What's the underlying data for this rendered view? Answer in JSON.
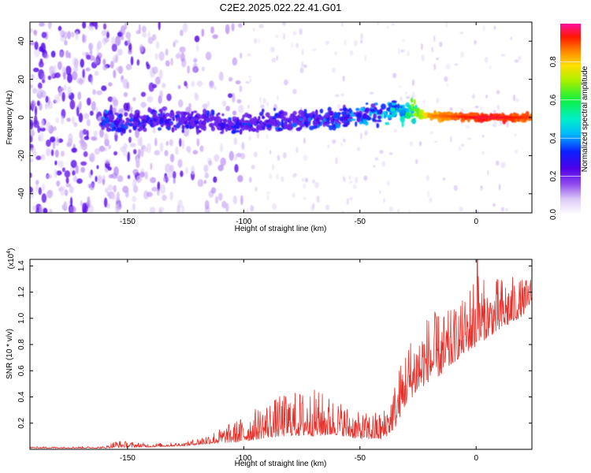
{
  "title": "C2E2.2025.022.22.41.G01",
  "chart_data": [
    {
      "type": "heatmap",
      "xlabel": "Height of straight line (km)",
      "ylabel": "Frequency (Hz)",
      "xlim": [
        -192,
        24
      ],
      "ylim": [
        -50,
        50
      ],
      "xticks": [
        -150,
        -100,
        -50,
        0
      ],
      "yticks": [
        -40,
        -20,
        0,
        20,
        40
      ],
      "colorbar": {
        "label": "Normalized spectral amplitude",
        "range": [
          0,
          1
        ],
        "ticks": [
          0.0,
          0.2,
          0.4,
          0.6,
          0.8
        ]
      },
      "ridge": {
        "x": [
          -160,
          -150,
          -140,
          -120,
          -100,
          -80,
          -60,
          -50,
          -40,
          -35,
          -30,
          -20,
          0,
          10,
          24
        ],
        "y": [
          -2,
          -3,
          -1,
          -2,
          -3,
          -2,
          -1,
          1,
          2,
          4,
          3,
          1,
          0,
          0,
          0
        ],
        "amplitude": [
          0.35,
          0.3,
          0.3,
          0.28,
          0.3,
          0.32,
          0.35,
          0.38,
          0.45,
          0.5,
          0.55,
          0.85,
          0.95,
          0.95,
          0.9
        ]
      },
      "background_noise_extent": [
        -192,
        -100
      ]
    },
    {
      "type": "line",
      "xlabel": "Height of straight line (km)",
      "ylabel": "SNR (10 * v/v)",
      "y_multiplier_label": "(x10",
      "y_multiplier_exp": "4",
      "y_multiplier_close": ")",
      "xlim": [
        -192,
        24
      ],
      "ylim": [
        0,
        1.45
      ],
      "xticks": [
        -150,
        -100,
        -50,
        0
      ],
      "yticks": [
        0.2,
        0.4,
        0.6,
        0.8,
        1.0,
        1.2,
        1.4
      ],
      "color": "#e8302a",
      "envelope": {
        "x": [
          -192,
          -160,
          -155,
          -140,
          -125,
          -120,
          -110,
          -100,
          -90,
          -80,
          -70,
          -60,
          -50,
          -40,
          -35,
          -30,
          -25,
          -20,
          -15,
          -10,
          -5,
          0,
          5,
          10,
          15,
          20,
          24
        ],
        "base": [
          0.01,
          0.01,
          0.02,
          0.02,
          0.03,
          0.04,
          0.06,
          0.08,
          0.12,
          0.14,
          0.14,
          0.14,
          0.1,
          0.1,
          0.2,
          0.4,
          0.5,
          0.58,
          0.62,
          0.7,
          0.78,
          0.85,
          0.9,
          0.95,
          1.0,
          1.05,
          1.15
        ],
        "amp": [
          0.008,
          0.01,
          0.04,
          0.02,
          0.02,
          0.04,
          0.08,
          0.14,
          0.2,
          0.24,
          0.26,
          0.2,
          0.14,
          0.16,
          0.26,
          0.34,
          0.36,
          0.38,
          0.34,
          0.3,
          0.3,
          0.45,
          0.28,
          0.3,
          0.26,
          0.2,
          0.14
        ]
      },
      "peak": {
        "x": 0.5,
        "y": 1.47
      }
    }
  ]
}
